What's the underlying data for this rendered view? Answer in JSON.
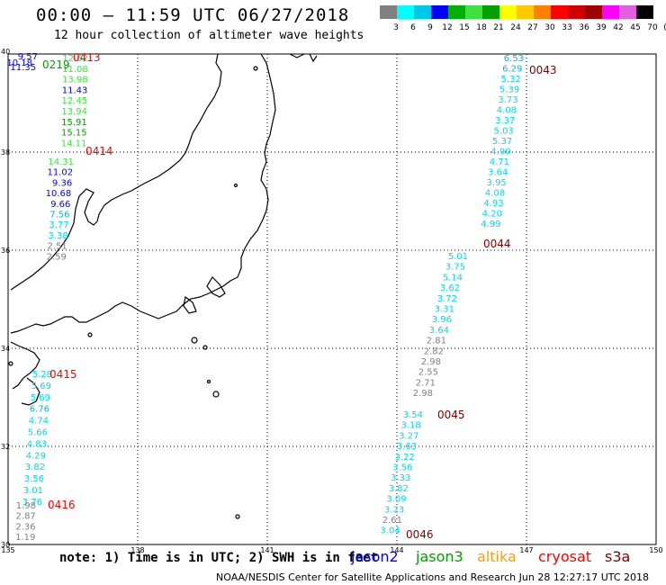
{
  "header": {
    "title": "00:00 – 11:59 UTC 06/27/2018",
    "subtitle": "12 hour collection of altimeter wave heights"
  },
  "legend": {
    "labels": [
      "3",
      "6",
      "9",
      "12",
      "15",
      "18",
      "21",
      "24",
      "27",
      "30",
      "33",
      "36",
      "39",
      "42",
      "45",
      "70",
      "(ft)"
    ],
    "colors": [
      "#808080",
      "#00ffff",
      "#00c8e8",
      "#0000ff",
      "#00b000",
      "#40e040",
      "#00a000",
      "#ffff00",
      "#ffc800",
      "#ff8000",
      "#ff0000",
      "#d00000",
      "#a00000",
      "#ff00ff",
      "#e060e0",
      "#000000"
    ]
  },
  "axes": {
    "lon_ticks": [
      "135",
      "138",
      "141",
      "144",
      "147",
      "150"
    ],
    "lat_ticks": [
      "30",
      "32",
      "34",
      "36",
      "38",
      "40"
    ]
  },
  "passes": [
    {
      "id": "0413",
      "color": "#ff0000",
      "values": [
        {
          "v": "12.62",
          "c": "#40e040"
        },
        {
          "v": "11.08",
          "c": "#40e040"
        },
        {
          "v": "13.98",
          "c": "#40e040"
        },
        {
          "v": "11.43",
          "c": "#0000ff"
        },
        {
          "v": "12.45",
          "c": "#40e040"
        },
        {
          "v": "13.94",
          "c": "#40e040"
        },
        {
          "v": "15.91",
          "c": "#00a000"
        },
        {
          "v": "15.15",
          "c": "#00a000"
        },
        {
          "v": "14.11",
          "c": "#40e040"
        }
      ]
    },
    {
      "id": "0414",
      "color": "#ff0000",
      "values": [
        {
          "v": "14.31",
          "c": "#40e040"
        },
        {
          "v": "11.02",
          "c": "#0000ff"
        },
        {
          "v": "9.36",
          "c": "#0000ff"
        },
        {
          "v": "10.68",
          "c": "#0000ff"
        },
        {
          "v": "9.66",
          "c": "#0000ff"
        },
        {
          "v": "7.56",
          "c": "#00b8d8"
        },
        {
          "v": "3.77",
          "c": "#00d8e8"
        },
        {
          "v": "3.38",
          "c": "#00d8e8"
        },
        {
          "v": "2.51",
          "c": "#808080"
        },
        {
          "v": "2.59",
          "c": "#808080"
        }
      ]
    },
    {
      "id": "0415",
      "color": "#ff0000",
      "values": [
        {
          "v": "5.28",
          "c": "#00d8e8"
        },
        {
          "v": "5.69",
          "c": "#00d8e8"
        },
        {
          "v": "5.69",
          "c": "#00d8e8"
        },
        {
          "v": "6.76",
          "c": "#00b8d8"
        },
        {
          "v": "4.74",
          "c": "#00d8e8"
        },
        {
          "v": "5.66",
          "c": "#00d8e8"
        },
        {
          "v": "4.83",
          "c": "#00d8e8"
        },
        {
          "v": "4.29",
          "c": "#00d8e8"
        },
        {
          "v": "3.82",
          "c": "#00d8e8"
        },
        {
          "v": "3.56",
          "c": "#00d8e8"
        },
        {
          "v": "3.01",
          "c": "#00d8e8"
        },
        {
          "v": "3.76",
          "c": "#00d8e8"
        }
      ]
    },
    {
      "id": "0416",
      "color": "#ff0000",
      "values": [
        {
          "v": "1.98",
          "c": "#808080"
        },
        {
          "v": "2.87",
          "c": "#808080"
        },
        {
          "v": "2.36",
          "c": "#808080"
        },
        {
          "v": "1.19",
          "c": "#808080"
        }
      ]
    },
    {
      "id": "0219",
      "color": "#00a000",
      "values": []
    },
    {
      "id": "0043",
      "color": "#800000",
      "values": [
        {
          "v": "6.53",
          "c": "#00b8d8"
        },
        {
          "v": "6.29",
          "c": "#00b8d8"
        },
        {
          "v": "5.32",
          "c": "#00d8e8"
        },
        {
          "v": "5.39",
          "c": "#00d8e8"
        },
        {
          "v": "3.73",
          "c": "#00d8e8"
        },
        {
          "v": "4.08",
          "c": "#00d8e8"
        },
        {
          "v": "3.37",
          "c": "#00d8e8"
        },
        {
          "v": "5.03",
          "c": "#00d8e8"
        },
        {
          "v": "5.37",
          "c": "#00d8e8"
        },
        {
          "v": "4.90",
          "c": "#00d8e8"
        },
        {
          "v": "4.71",
          "c": "#00d8e8"
        },
        {
          "v": "3.64",
          "c": "#00d8e8"
        },
        {
          "v": "3.95",
          "c": "#00d8e8"
        },
        {
          "v": "4.08",
          "c": "#00d8e8"
        },
        {
          "v": "4.93",
          "c": "#00d8e8"
        },
        {
          "v": "4.20",
          "c": "#00d8e8"
        },
        {
          "v": "4.99",
          "c": "#00d8e8"
        }
      ]
    },
    {
      "id": "0044",
      "color": "#800000",
      "values": [
        {
          "v": "5.01",
          "c": "#00d8e8"
        },
        {
          "v": "3.75",
          "c": "#00d8e8"
        },
        {
          "v": "5.14",
          "c": "#00d8e8"
        },
        {
          "v": "3.62",
          "c": "#00d8e8"
        },
        {
          "v": "3.72",
          "c": "#00d8e8"
        },
        {
          "v": "3.31",
          "c": "#00d8e8"
        },
        {
          "v": "3.96",
          "c": "#00d8e8"
        },
        {
          "v": "3.64",
          "c": "#00d8e8"
        },
        {
          "v": "2.81",
          "c": "#808080"
        },
        {
          "v": "2.82",
          "c": "#808080"
        },
        {
          "v": "2.98",
          "c": "#808080"
        },
        {
          "v": "2.55",
          "c": "#808080"
        },
        {
          "v": "2.71",
          "c": "#808080"
        },
        {
          "v": "2.98",
          "c": "#808080"
        }
      ]
    },
    {
      "id": "0045",
      "color": "#800000",
      "values": [
        {
          "v": "3.54",
          "c": "#00d8e8"
        },
        {
          "v": "3.18",
          "c": "#00d8e8"
        },
        {
          "v": "3.27",
          "c": "#00d8e8"
        },
        {
          "v": "3.63",
          "c": "#00d8e8"
        },
        {
          "v": "3.22",
          "c": "#00d8e8"
        },
        {
          "v": "3.56",
          "c": "#00d8e8"
        },
        {
          "v": "3.33",
          "c": "#00d8e8"
        },
        {
          "v": "3.82",
          "c": "#00d8e8"
        },
        {
          "v": "3.09",
          "c": "#00d8e8"
        },
        {
          "v": "3.23",
          "c": "#00d8e8"
        },
        {
          "v": "2.61",
          "c": "#808080"
        },
        {
          "v": "3.04",
          "c": "#00d8e8"
        }
      ]
    },
    {
      "id": "0046",
      "color": "#800000",
      "values": []
    }
  ],
  "corner_labels": {
    "a": {
      "text": "9.57",
      "color": "#0000ff"
    },
    "b": {
      "text": "10.18",
      "color": "#0000ff"
    },
    "c": {
      "text": "11.35",
      "color": "#0000ff"
    },
    "d": {
      "text": "0219",
      "color": "#00a000"
    },
    "e": {
      "text": "0413",
      "color": "#ff0000"
    }
  },
  "footer": {
    "note": "note: 1) Time is in UTC; 2) SWH is in feet",
    "credit": "NOAA/NESDIS Center for Satellite Applications and Research   Jun 28 12:27:17 UTC 2018",
    "missions": [
      {
        "name": "jason2",
        "color": "#0000ff"
      },
      {
        "name": "jason3",
        "color": "#00a000"
      },
      {
        "name": "altika",
        "color": "#ffa000"
      },
      {
        "name": "cryosat",
        "color": "#ff0000"
      },
      {
        "name": "s3a",
        "color": "#800000"
      }
    ]
  }
}
